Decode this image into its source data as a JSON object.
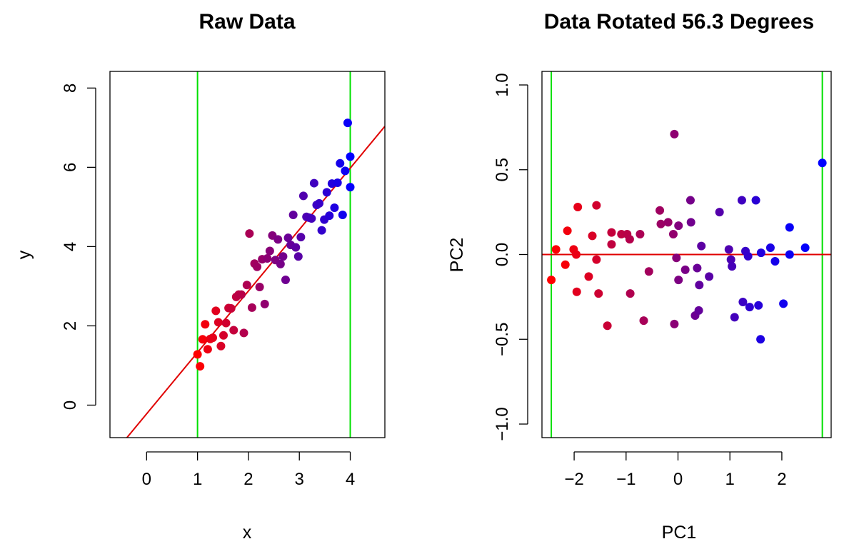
{
  "chart_data": [
    {
      "type": "scatter",
      "title": "Raw Data",
      "xlabel": "x",
      "ylabel": "y",
      "xlim": [
        -0.72,
        4.68
      ],
      "ylim": [
        -0.82,
        8.42
      ],
      "xticks": [
        0,
        1,
        2,
        3,
        4
      ],
      "yticks": [
        0,
        2,
        4,
        6,
        8
      ],
      "xtick_labels": [
        "0",
        "1",
        "2",
        "3",
        "4"
      ],
      "ytick_labels": [
        "0",
        "2",
        "4",
        "6",
        "8"
      ],
      "grid": false,
      "point_color_gradient": [
        "#ff0000",
        "#0000ff"
      ],
      "vlines": [
        {
          "x": 1,
          "color": "#00e000"
        },
        {
          "x": 4,
          "color": "#00e000"
        }
      ],
      "abline": {
        "intercept": -0.22,
        "slope": 1.55,
        "color": "#e00000"
      },
      "points": [
        {
          "x": 1.0,
          "y": 1.28
        },
        {
          "x": 1.05,
          "y": 0.98
        },
        {
          "x": 1.1,
          "y": 1.66
        },
        {
          "x": 1.15,
          "y": 2.04
        },
        {
          "x": 1.2,
          "y": 1.41
        },
        {
          "x": 1.25,
          "y": 1.67
        },
        {
          "x": 1.3,
          "y": 1.7
        },
        {
          "x": 1.36,
          "y": 2.38
        },
        {
          "x": 1.41,
          "y": 2.09
        },
        {
          "x": 1.46,
          "y": 1.49
        },
        {
          "x": 1.51,
          "y": 1.76
        },
        {
          "x": 1.56,
          "y": 2.07
        },
        {
          "x": 1.61,
          "y": 2.45
        },
        {
          "x": 1.66,
          "y": 2.44
        },
        {
          "x": 1.71,
          "y": 1.89
        },
        {
          "x": 1.76,
          "y": 2.73
        },
        {
          "x": 1.81,
          "y": 2.79
        },
        {
          "x": 1.86,
          "y": 2.79
        },
        {
          "x": 1.91,
          "y": 1.82
        },
        {
          "x": 1.97,
          "y": 3.03
        },
        {
          "x": 2.02,
          "y": 4.33
        },
        {
          "x": 2.07,
          "y": 2.46
        },
        {
          "x": 2.12,
          "y": 3.57
        },
        {
          "x": 2.17,
          "y": 3.49
        },
        {
          "x": 2.22,
          "y": 2.98
        },
        {
          "x": 2.27,
          "y": 3.68
        },
        {
          "x": 2.32,
          "y": 2.55
        },
        {
          "x": 2.37,
          "y": 3.7
        },
        {
          "x": 2.42,
          "y": 3.89
        },
        {
          "x": 2.47,
          "y": 4.28
        },
        {
          "x": 2.53,
          "y": 3.66
        },
        {
          "x": 2.58,
          "y": 4.18
        },
        {
          "x": 2.63,
          "y": 3.56
        },
        {
          "x": 2.68,
          "y": 3.75
        },
        {
          "x": 2.73,
          "y": 3.16
        },
        {
          "x": 2.78,
          "y": 4.22
        },
        {
          "x": 2.83,
          "y": 4.04
        },
        {
          "x": 2.88,
          "y": 4.8
        },
        {
          "x": 2.93,
          "y": 3.98
        },
        {
          "x": 2.98,
          "y": 3.75
        },
        {
          "x": 3.03,
          "y": 4.24
        },
        {
          "x": 3.08,
          "y": 5.28
        },
        {
          "x": 3.14,
          "y": 4.75
        },
        {
          "x": 3.19,
          "y": 4.73
        },
        {
          "x": 3.24,
          "y": 4.71
        },
        {
          "x": 3.29,
          "y": 5.6
        },
        {
          "x": 3.34,
          "y": 5.05
        },
        {
          "x": 3.39,
          "y": 5.09
        },
        {
          "x": 3.44,
          "y": 4.41
        },
        {
          "x": 3.49,
          "y": 4.68
        },
        {
          "x": 3.54,
          "y": 5.37
        },
        {
          "x": 3.59,
          "y": 4.78
        },
        {
          "x": 3.64,
          "y": 5.59
        },
        {
          "x": 3.69,
          "y": 4.98
        },
        {
          "x": 3.75,
          "y": 5.61
        },
        {
          "x": 3.8,
          "y": 6.1
        },
        {
          "x": 3.85,
          "y": 4.8
        },
        {
          "x": 3.9,
          "y": 5.91
        },
        {
          "x": 3.95,
          "y": 7.12
        },
        {
          "x": 4.0,
          "y": 5.5
        },
        {
          "x": 4.0,
          "y": 6.27
        }
      ]
    },
    {
      "type": "scatter",
      "title": "Data Rotated 56.3 Degrees",
      "xlabel": "PC1",
      "ylabel": "PC2",
      "xlim": [
        -2.62,
        2.95
      ],
      "ylim": [
        -1.08,
        1.08
      ],
      "xticks": [
        -2,
        -1,
        0,
        1,
        2
      ],
      "yticks": [
        -1.0,
        -0.5,
        0.0,
        0.5,
        1.0
      ],
      "xtick_labels": [
        "−2",
        "−1",
        "0",
        "1",
        "2"
      ],
      "ytick_labels": [
        "−1.0",
        "−0.5",
        "0.0",
        "0.5",
        "1.0"
      ],
      "grid": false,
      "point_color_gradient": [
        "#ff0000",
        "#0000ff"
      ],
      "vlines": [
        {
          "x": -2.44,
          "color": "#00e000"
        },
        {
          "x": 2.78,
          "color": "#00e000"
        }
      ],
      "hline": {
        "y": 0,
        "color": "#e00000"
      },
      "points": [
        {
          "x": -2.44,
          "y": -0.15
        },
        {
          "x": -2.35,
          "y": 0.03
        },
        {
          "x": -2.17,
          "y": -0.06
        },
        {
          "x": -2.13,
          "y": 0.14
        },
        {
          "x": -2.01,
          "y": 0.03
        },
        {
          "x": -1.96,
          "y": 0.0
        },
        {
          "x": -1.93,
          "y": 0.28
        },
        {
          "x": -1.95,
          "y": -0.22
        },
        {
          "x": -1.72,
          "y": -0.13
        },
        {
          "x": -1.65,
          "y": 0.11
        },
        {
          "x": -1.57,
          "y": -0.03
        },
        {
          "x": -1.57,
          "y": 0.29
        },
        {
          "x": -1.53,
          "y": -0.23
        },
        {
          "x": -1.36,
          "y": -0.42
        },
        {
          "x": -1.28,
          "y": 0.13
        },
        {
          "x": -1.28,
          "y": 0.06
        },
        {
          "x": -1.09,
          "y": 0.12
        },
        {
          "x": -0.98,
          "y": 0.12
        },
        {
          "x": -0.93,
          "y": 0.09
        },
        {
          "x": -0.92,
          "y": -0.23
        },
        {
          "x": -0.73,
          "y": 0.12
        },
        {
          "x": -0.66,
          "y": -0.39
        },
        {
          "x": -0.56,
          "y": -0.1
        },
        {
          "x": -0.35,
          "y": 0.26
        },
        {
          "x": -0.33,
          "y": 0.18
        },
        {
          "x": -0.19,
          "y": 0.19
        },
        {
          "x": -0.09,
          "y": 0.12
        },
        {
          "x": -0.07,
          "y": 0.71
        },
        {
          "x": -0.07,
          "y": -0.41
        },
        {
          "x": -0.03,
          "y": -0.02
        },
        {
          "x": 0.01,
          "y": 0.17
        },
        {
          "x": 0.01,
          "y": -0.15
        },
        {
          "x": 0.14,
          "y": -0.09
        },
        {
          "x": 0.24,
          "y": 0.32
        },
        {
          "x": 0.25,
          "y": 0.19
        },
        {
          "x": 0.33,
          "y": -0.36
        },
        {
          "x": 0.37,
          "y": -0.08
        },
        {
          "x": 0.4,
          "y": -0.33
        },
        {
          "x": 0.41,
          "y": -0.18
        },
        {
          "x": 0.45,
          "y": 0.05
        },
        {
          "x": 0.6,
          "y": -0.13
        },
        {
          "x": 0.8,
          "y": 0.25
        },
        {
          "x": 0.98,
          "y": 0.03
        },
        {
          "x": 1.02,
          "y": -0.03
        },
        {
          "x": 1.04,
          "y": -0.07
        },
        {
          "x": 1.09,
          "y": -0.37
        },
        {
          "x": 1.23,
          "y": 0.32
        },
        {
          "x": 1.25,
          "y": -0.28
        },
        {
          "x": 1.3,
          "y": 0.02
        },
        {
          "x": 1.35,
          "y": -0.01
        },
        {
          "x": 1.38,
          "y": -0.31
        },
        {
          "x": 1.5,
          "y": 0.32
        },
        {
          "x": 1.55,
          "y": -0.3
        },
        {
          "x": 1.6,
          "y": 0.01
        },
        {
          "x": 1.59,
          "y": -0.5
        },
        {
          "x": 1.78,
          "y": 0.04
        },
        {
          "x": 1.87,
          "y": -0.04
        },
        {
          "x": 2.03,
          "y": -0.29
        },
        {
          "x": 2.15,
          "y": 0.0
        },
        {
          "x": 2.15,
          "y": 0.16
        },
        {
          "x": 2.45,
          "y": 0.04
        },
        {
          "x": 2.78,
          "y": 0.54
        }
      ]
    }
  ]
}
